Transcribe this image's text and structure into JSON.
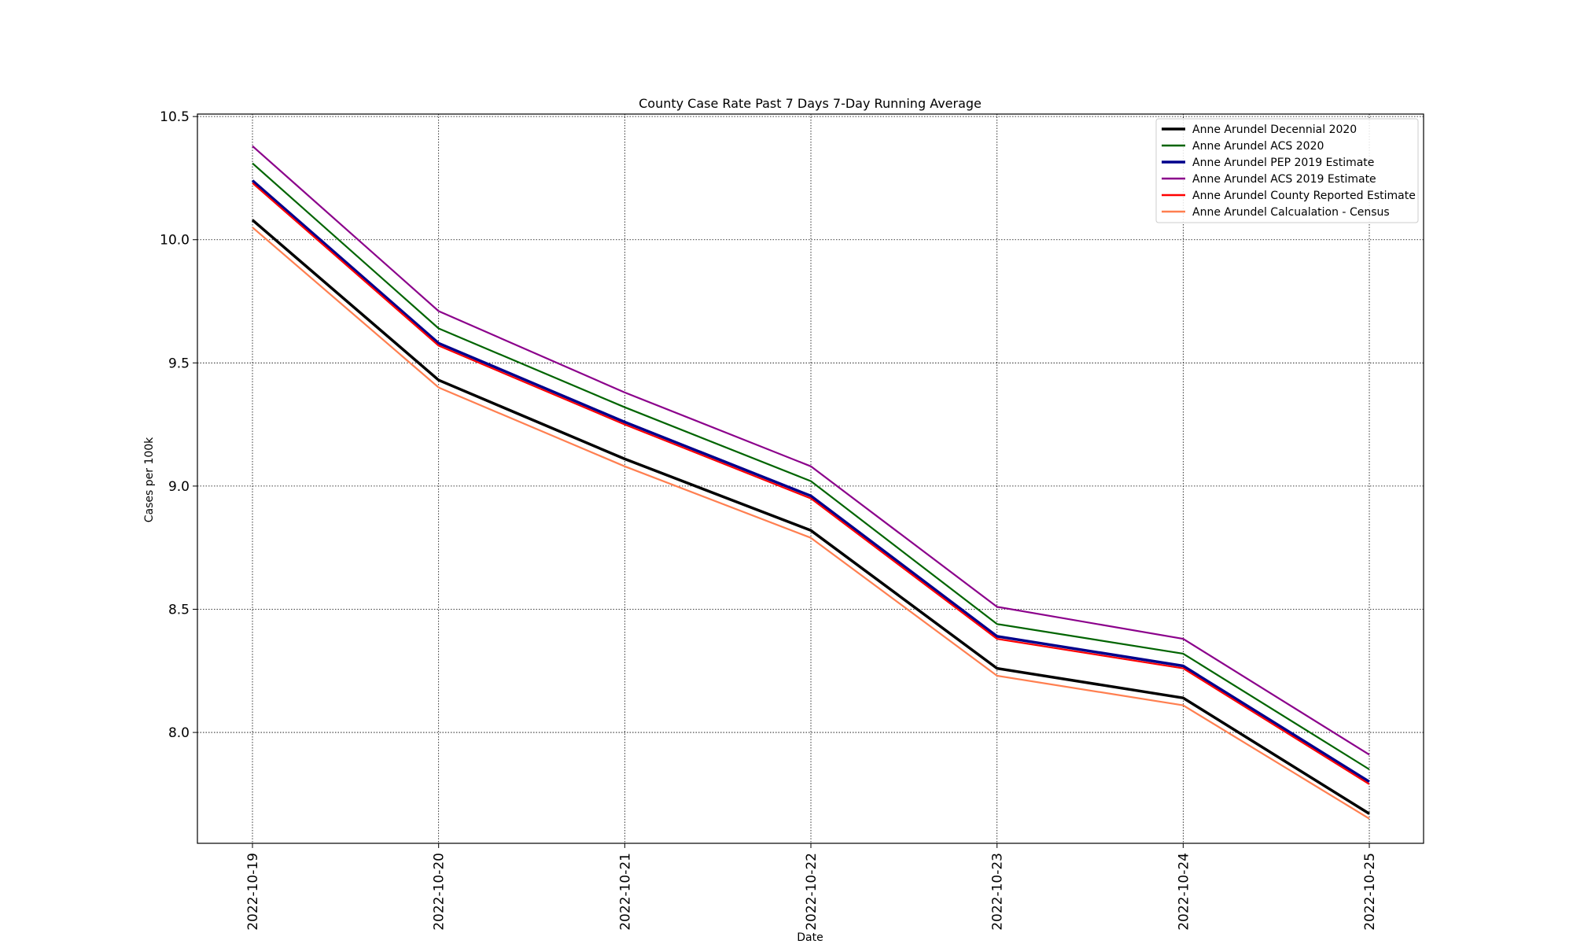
{
  "chart_data": {
    "type": "line",
    "title": "County Case Rate  Past 7 Days 7-Day Running Average",
    "xlabel": "Date",
    "ylabel": "Cases per 100k",
    "x": [
      "2022-10-19",
      "2022-10-20",
      "2022-10-21",
      "2022-10-22",
      "2022-10-23",
      "2022-10-24",
      "2022-10-25"
    ],
    "ylim": [
      7.55,
      10.51
    ],
    "yticks": [
      "8.0",
      "8.5",
      "9.0",
      "9.5",
      "10.0",
      "10.5"
    ],
    "grid": true,
    "legend_position": "top-right",
    "series": [
      {
        "name": "Anne Arundel Decennial 2020",
        "color": "#000000",
        "width": 3.5,
        "values": [
          10.08,
          9.43,
          9.11,
          8.82,
          8.26,
          8.14,
          7.67
        ]
      },
      {
        "name": "Anne Arundel ACS 2020",
        "color": "#006400",
        "width": 2.2,
        "values": [
          10.31,
          9.64,
          9.32,
          9.02,
          8.44,
          8.32,
          7.85
        ]
      },
      {
        "name": "Anne Arundel PEP 2019 Estimate",
        "color": "#00008b",
        "width": 3.5,
        "values": [
          10.24,
          9.58,
          9.26,
          8.96,
          8.39,
          8.27,
          7.8
        ]
      },
      {
        "name": "Anne Arundel ACS 2019 Estimate",
        "color": "#8b008b",
        "width": 2.2,
        "values": [
          10.38,
          9.71,
          9.38,
          9.08,
          8.51,
          8.38,
          7.91
        ]
      },
      {
        "name": "Anne Arundel County Reported Estimate",
        "color": "#ff0000",
        "width": 2.2,
        "values": [
          10.23,
          9.57,
          9.25,
          8.95,
          8.38,
          8.26,
          7.79
        ]
      },
      {
        "name": "Anne Arundel Calcualation - Census",
        "color": "#ff7f50",
        "width": 2.2,
        "values": [
          10.05,
          9.4,
          9.08,
          8.79,
          8.23,
          8.11,
          7.65
        ]
      }
    ]
  }
}
